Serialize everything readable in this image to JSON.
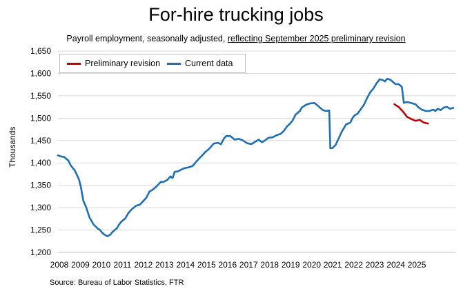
{
  "chart_data": {
    "type": "line",
    "title": "For-hire trucking jobs",
    "subtitle_plain": "Payroll employment, seasonally adjusted, ",
    "subtitle_underlined": "reflecting September 2025 preliminary revision",
    "ylabel": "Thousands",
    "xlabel": "",
    "source": "Source: Bureau of Labor Statistics, FTR",
    "ylim": [
      1200,
      1650
    ],
    "yticks": [
      "1,200",
      "1,250",
      "1,300",
      "1,350",
      "1,400",
      "1,450",
      "1,500",
      "1,550",
      "1,600",
      "1,650"
    ],
    "xticks": [
      "2008",
      "2009",
      "2010",
      "2011",
      "2012",
      "2013",
      "2014",
      "2015",
      "2016",
      "2017",
      "2018",
      "2019",
      "2020",
      "2021",
      "2022",
      "2023",
      "2024",
      "2025"
    ],
    "grid": "horizontal",
    "legend_position": "top-left",
    "colors": {
      "current": "#1f6fb4",
      "revision": "#c00000"
    },
    "series": [
      {
        "name": "Preliminary revision",
        "color": "#c00000",
        "points": [
          [
            2024.0,
            1531
          ],
          [
            2024.2,
            1525
          ],
          [
            2024.4,
            1515
          ],
          [
            2024.6,
            1503
          ],
          [
            2024.8,
            1498
          ],
          [
            2025.0,
            1494
          ],
          [
            2025.2,
            1496
          ],
          [
            2025.4,
            1490
          ],
          [
            2025.6,
            1488
          ]
        ]
      },
      {
        "name": "Current data",
        "color": "#1f6fb4",
        "points": [
          [
            2008.0,
            1417
          ],
          [
            2008.1,
            1415
          ],
          [
            2008.3,
            1413
          ],
          [
            2008.5,
            1405
          ],
          [
            2008.6,
            1395
          ],
          [
            2008.8,
            1383
          ],
          [
            2009.0,
            1363
          ],
          [
            2009.1,
            1344
          ],
          [
            2009.2,
            1316
          ],
          [
            2009.35,
            1300
          ],
          [
            2009.5,
            1278
          ],
          [
            2009.7,
            1262
          ],
          [
            2009.9,
            1253
          ],
          [
            2010.0,
            1250
          ],
          [
            2010.1,
            1244
          ],
          [
            2010.2,
            1240
          ],
          [
            2010.35,
            1236
          ],
          [
            2010.5,
            1240
          ],
          [
            2010.6,
            1246
          ],
          [
            2010.8,
            1254
          ],
          [
            2010.9,
            1262
          ],
          [
            2011.0,
            1268
          ],
          [
            2011.1,
            1272
          ],
          [
            2011.2,
            1276
          ],
          [
            2011.35,
            1288
          ],
          [
            2011.5,
            1296
          ],
          [
            2011.7,
            1304
          ],
          [
            2011.9,
            1307
          ],
          [
            2012.0,
            1312
          ],
          [
            2012.2,
            1322
          ],
          [
            2012.35,
            1336
          ],
          [
            2012.5,
            1340
          ],
          [
            2012.7,
            1348
          ],
          [
            2012.9,
            1358
          ],
          [
            2013.0,
            1357
          ],
          [
            2013.2,
            1362
          ],
          [
            2013.35,
            1370
          ],
          [
            2013.45,
            1366
          ],
          [
            2013.55,
            1380
          ],
          [
            2013.7,
            1381
          ],
          [
            2013.9,
            1386
          ],
          [
            2014.0,
            1388
          ],
          [
            2014.2,
            1390
          ],
          [
            2014.4,
            1393
          ],
          [
            2014.6,
            1404
          ],
          [
            2014.8,
            1414
          ],
          [
            2015.0,
            1424
          ],
          [
            2015.2,
            1432
          ],
          [
            2015.4,
            1443
          ],
          [
            2015.6,
            1445
          ],
          [
            2015.75,
            1442
          ],
          [
            2015.9,
            1455
          ],
          [
            2016.0,
            1460
          ],
          [
            2016.2,
            1460
          ],
          [
            2016.4,
            1452
          ],
          [
            2016.6,
            1454
          ],
          [
            2016.8,
            1450
          ],
          [
            2017.0,
            1444
          ],
          [
            2017.2,
            1442
          ],
          [
            2017.4,
            1448
          ],
          [
            2017.55,
            1452
          ],
          [
            2017.7,
            1446
          ],
          [
            2017.9,
            1452
          ],
          [
            2018.0,
            1456
          ],
          [
            2018.2,
            1457
          ],
          [
            2018.4,
            1462
          ],
          [
            2018.6,
            1465
          ],
          [
            2018.75,
            1472
          ],
          [
            2018.9,
            1482
          ],
          [
            2019.0,
            1486
          ],
          [
            2019.15,
            1494
          ],
          [
            2019.3,
            1508
          ],
          [
            2019.5,
            1516
          ],
          [
            2019.6,
            1524
          ],
          [
            2019.8,
            1530
          ],
          [
            2020.0,
            1533
          ],
          [
            2020.2,
            1534
          ],
          [
            2020.3,
            1530
          ],
          [
            2020.45,
            1524
          ],
          [
            2020.6,
            1518
          ],
          [
            2020.75,
            1516
          ],
          [
            2020.9,
            1517
          ],
          [
            2020.95,
            1433
          ],
          [
            2021.05,
            1433
          ],
          [
            2021.2,
            1440
          ],
          [
            2021.35,
            1455
          ],
          [
            2021.5,
            1470
          ],
          [
            2021.7,
            1486
          ],
          [
            2021.9,
            1490
          ],
          [
            2022.0,
            1500
          ],
          [
            2022.1,
            1506
          ],
          [
            2022.25,
            1510
          ],
          [
            2022.4,
            1520
          ],
          [
            2022.55,
            1530
          ],
          [
            2022.7,
            1545
          ],
          [
            2022.85,
            1558
          ],
          [
            2023.0,
            1566
          ],
          [
            2023.15,
            1578
          ],
          [
            2023.3,
            1587
          ],
          [
            2023.45,
            1585
          ],
          [
            2023.55,
            1582
          ],
          [
            2023.65,
            1588
          ],
          [
            2023.8,
            1586
          ],
          [
            2023.95,
            1580
          ],
          [
            2024.05,
            1576
          ],
          [
            2024.2,
            1576
          ],
          [
            2024.35,
            1570
          ],
          [
            2024.45,
            1534
          ],
          [
            2024.55,
            1536
          ],
          [
            2024.7,
            1535
          ],
          [
            2024.85,
            1533
          ],
          [
            2025.0,
            1531
          ],
          [
            2025.15,
            1524
          ],
          [
            2025.3,
            1519
          ],
          [
            2025.5,
            1516
          ],
          [
            2025.65,
            1516
          ],
          [
            2025.85,
            1519
          ],
          [
            2025.95,
            1516
          ],
          [
            2026.05,
            1521
          ],
          [
            2026.2,
            1518
          ],
          [
            2026.35,
            1524
          ],
          [
            2026.5,
            1525
          ],
          [
            2026.65,
            1521
          ],
          [
            2026.8,
            1523
          ]
        ]
      }
    ]
  }
}
